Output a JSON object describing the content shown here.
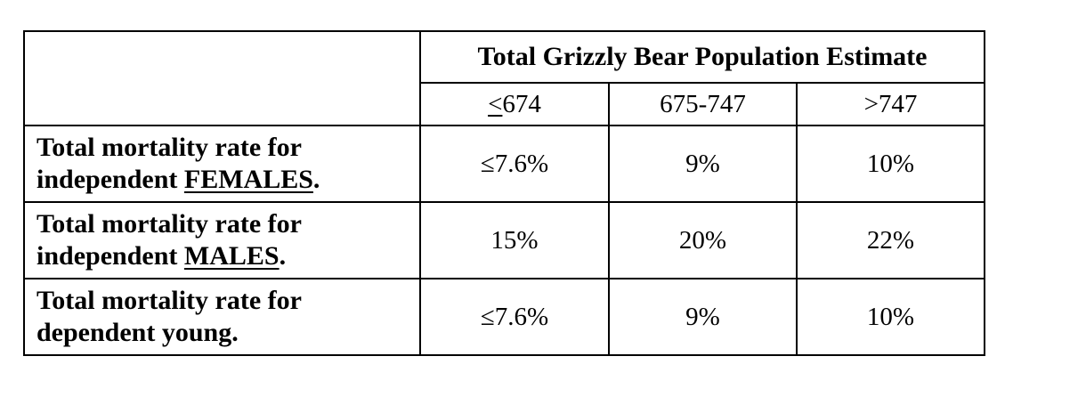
{
  "table": {
    "title": "Total Grizzly Bear Population Estimate",
    "columns": [
      {
        "symbol": "<",
        "label": "674"
      },
      {
        "symbol": "",
        "label": "675-747"
      },
      {
        "symbol": "",
        "label": ">747"
      }
    ],
    "rows": [
      {
        "line1": "Total mortality rate for",
        "line2_prefix": "independent ",
        "line2_emph": "FEMALES",
        "line2_suffix": ".",
        "values": [
          "≤7.6%",
          "9%",
          "10%"
        ]
      },
      {
        "line1": "Total mortality rate for",
        "line2_prefix": "independent ",
        "line2_emph": "MALES",
        "line2_suffix": ".",
        "values": [
          "15%",
          "20%",
          "22%"
        ]
      },
      {
        "line1": "Total mortality rate for",
        "line2_prefix": "dependent young.",
        "line2_emph": "",
        "line2_suffix": "",
        "values": [
          "≤7.6%",
          "9%",
          "10%"
        ]
      }
    ]
  }
}
